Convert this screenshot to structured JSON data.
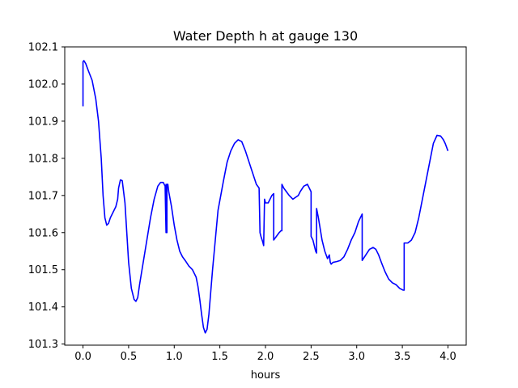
{
  "chart_data": {
    "type": "line",
    "title": "Water Depth h at gauge 130",
    "xlabel": "hours",
    "ylabel": "",
    "xlim": [
      -0.2,
      4.2
    ],
    "ylim": [
      101.297,
      102.1
    ],
    "xticks": [
      0.0,
      0.5,
      1.0,
      1.5,
      2.0,
      2.5,
      3.0,
      3.5,
      4.0
    ],
    "xtick_labels": [
      "0.0",
      "0.5",
      "1.0",
      "1.5",
      "2.0",
      "2.5",
      "3.0",
      "3.5",
      "4.0"
    ],
    "yticks": [
      101.3,
      101.4,
      101.5,
      101.6,
      101.7,
      101.8,
      101.9,
      102.0,
      102.1
    ],
    "ytick_labels": [
      "101.3",
      "101.4",
      "101.5",
      "101.6",
      "101.7",
      "101.8",
      "101.9",
      "102.0",
      "102.1"
    ],
    "grid": false,
    "series": [
      {
        "color": "#0000ff",
        "x": [
          0.0,
          0.0,
          0.01,
          0.03,
          0.06,
          0.1,
          0.14,
          0.17,
          0.2,
          0.22,
          0.24,
          0.26,
          0.28,
          0.3,
          0.33,
          0.36,
          0.38,
          0.39,
          0.41,
          0.43,
          0.44,
          0.46,
          0.48,
          0.5,
          0.53,
          0.56,
          0.58,
          0.6,
          0.62,
          0.66,
          0.7,
          0.74,
          0.78,
          0.82,
          0.85,
          0.88,
          0.9,
          0.91,
          0.91,
          0.92,
          0.92,
          0.93,
          0.94,
          0.97,
          1.0,
          1.03,
          1.06,
          1.09,
          1.12,
          1.16,
          1.2,
          1.24,
          1.26,
          1.28,
          1.3,
          1.32,
          1.34,
          1.36,
          1.38,
          1.4,
          1.42,
          1.45,
          1.48,
          1.51,
          1.54,
          1.58,
          1.62,
          1.66,
          1.7,
          1.74,
          1.78,
          1.82,
          1.86,
          1.9,
          1.93,
          1.94,
          1.95,
          1.97,
          1.98,
          1.99,
          2.0,
          2.03,
          2.07,
          2.09,
          2.09,
          2.12,
          2.15,
          2.17,
          2.18,
          2.18,
          2.2,
          2.23,
          2.26,
          2.28,
          2.3,
          2.33,
          2.36,
          2.38,
          2.42,
          2.46,
          2.48,
          2.5,
          2.5,
          2.52,
          2.55,
          2.56,
          2.56,
          2.58,
          2.6,
          2.62,
          2.65,
          2.68,
          2.7,
          2.71,
          2.72,
          2.74,
          2.78,
          2.82,
          2.86,
          2.9,
          2.94,
          2.98,
          3.02,
          3.05,
          3.06,
          3.06,
          3.1,
          3.14,
          3.18,
          3.21,
          3.24,
          3.27,
          3.31,
          3.35,
          3.39,
          3.43,
          3.47,
          3.51,
          3.52,
          3.52,
          3.56,
          3.6,
          3.64,
          3.68,
          3.72,
          3.76,
          3.8,
          3.84,
          3.88,
          3.92,
          3.95,
          3.97,
          4.0
        ],
        "y": [
          101.94,
          102.06,
          102.063,
          102.055,
          102.035,
          102.01,
          101.96,
          101.9,
          101.8,
          101.7,
          101.64,
          101.62,
          101.625,
          101.64,
          101.655,
          101.67,
          101.69,
          101.72,
          101.742,
          101.74,
          101.72,
          101.68,
          101.6,
          101.52,
          101.45,
          101.42,
          101.415,
          101.425,
          101.46,
          101.52,
          101.58,
          101.64,
          101.69,
          101.725,
          101.735,
          101.735,
          101.725,
          101.6,
          101.73,
          101.6,
          101.73,
          101.73,
          101.71,
          101.67,
          101.62,
          101.58,
          101.55,
          101.535,
          101.525,
          101.51,
          101.5,
          101.48,
          101.455,
          101.42,
          101.38,
          101.345,
          101.33,
          101.34,
          101.38,
          101.44,
          101.5,
          101.58,
          101.66,
          101.7,
          101.74,
          101.79,
          101.82,
          101.84,
          101.85,
          101.845,
          101.82,
          101.79,
          101.76,
          101.73,
          101.72,
          101.6,
          101.59,
          101.575,
          101.565,
          101.69,
          101.68,
          101.68,
          101.7,
          101.705,
          101.58,
          101.59,
          101.6,
          101.605,
          101.605,
          101.73,
          101.72,
          101.71,
          101.7,
          101.695,
          101.69,
          101.695,
          101.7,
          101.71,
          101.725,
          101.73,
          101.72,
          101.71,
          101.59,
          101.58,
          101.55,
          101.545,
          101.665,
          101.64,
          101.61,
          101.58,
          101.55,
          101.53,
          101.54,
          101.52,
          101.515,
          101.52,
          101.522,
          101.525,
          101.535,
          101.555,
          101.58,
          101.6,
          101.63,
          101.645,
          101.65,
          101.525,
          101.54,
          101.555,
          101.56,
          101.555,
          101.54,
          101.52,
          101.495,
          101.475,
          101.465,
          101.46,
          101.45,
          101.445,
          101.445,
          101.572,
          101.572,
          101.58,
          101.6,
          101.64,
          101.69,
          101.74,
          101.79,
          101.84,
          101.862,
          101.86,
          101.85,
          101.84,
          101.82
        ]
      }
    ]
  }
}
